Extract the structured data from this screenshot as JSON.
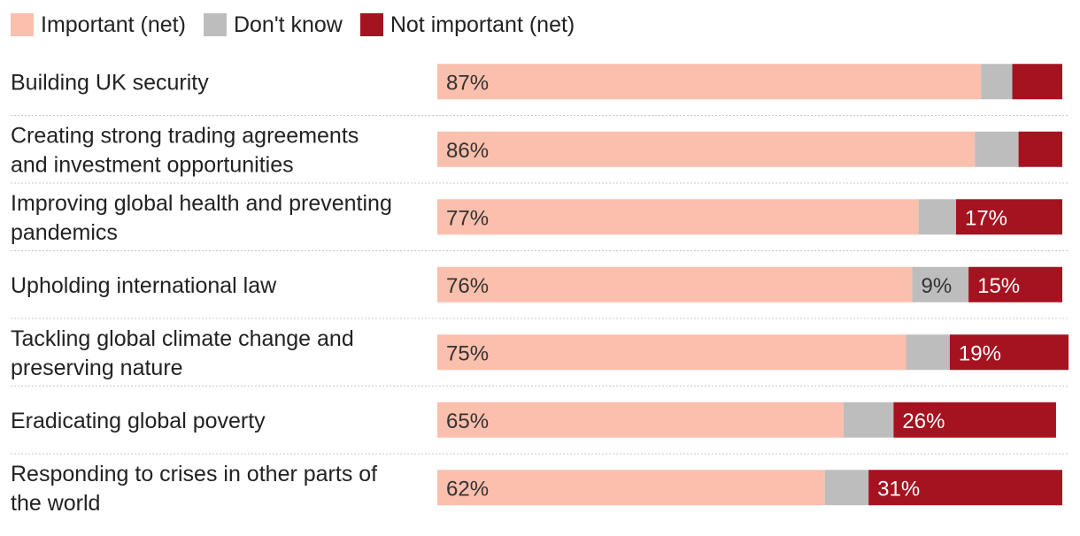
{
  "chart_data": {
    "type": "bar",
    "orientation": "horizontal",
    "stacked": true,
    "categories": [
      [
        "Building UK security"
      ],
      [
        "Creating strong trading agreements",
        "and investment opportunities"
      ],
      [
        "Improving global health and preventing",
        "pandemics"
      ],
      [
        "Upholding international law"
      ],
      [
        "Tackling global climate change and",
        "preserving nature"
      ],
      [
        "Eradicating global poverty"
      ],
      [
        "Responding to crises in other parts of",
        "the world"
      ]
    ],
    "series": [
      {
        "name": "Important (net)",
        "color": "#fbbfad",
        "values": [
          87,
          86,
          77,
          76,
          75,
          65,
          62
        ],
        "labels": [
          "87%",
          "86%",
          "77%",
          "76%",
          "75%",
          "65%",
          "62%"
        ]
      },
      {
        "name": "Don't know",
        "color": "#bdbdbd",
        "values": [
          5,
          7,
          6,
          9,
          7,
          8,
          7
        ],
        "labels": [
          "",
          "",
          "",
          "9%",
          "",
          "",
          ""
        ]
      },
      {
        "name": "Not important (net)",
        "color": "#a51320",
        "values": [
          8,
          7,
          17,
          15,
          19,
          26,
          31
        ],
        "labels": [
          "",
          "",
          "17%",
          "15%",
          "19%",
          "26%",
          "31%"
        ]
      }
    ],
    "xlim": [
      0,
      100
    ],
    "legend": "top-left",
    "grid": false
  }
}
